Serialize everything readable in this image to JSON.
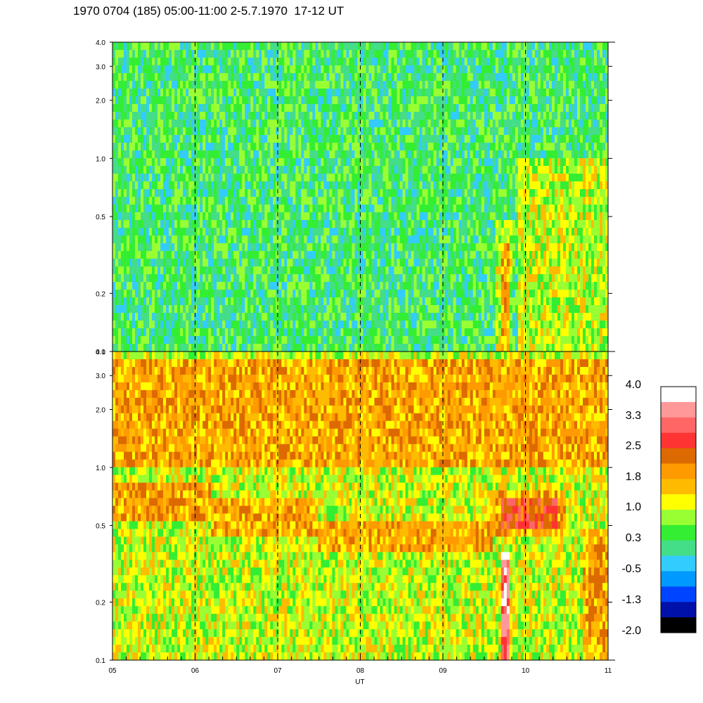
{
  "title": "1970 0704 (185) 05:00-11:00 2-5.7.1970  17-12 UT",
  "chart_data": {
    "type": "heatmap",
    "panels": [
      {
        "name": "",
        "y_scale": "log",
        "ylim": [
          0.1,
          4.0
        ],
        "yticks": [
          {
            "value": 0.1,
            "label": "0.1"
          },
          {
            "value": 0.2,
            "label": "0.2"
          },
          {
            "value": 0.5,
            "label": "0.5"
          },
          {
            "value": 1.0,
            "label": "1.0"
          },
          {
            "value": 2.0,
            "label": "2.0"
          },
          {
            "value": 3.0,
            "label": "3.0"
          },
          {
            "value": 4.0,
            "label": "4.0"
          }
        ],
        "background_level": 0.3,
        "bands": [
          {
            "x_start": 9.65,
            "x_end": 9.85,
            "y_low": 0.1,
            "y_high": 0.5,
            "level": 1.0
          },
          {
            "x_start": 9.9,
            "x_end": 11.0,
            "y_low": 0.1,
            "y_high": 1.0,
            "level": 1.0
          },
          {
            "x_start": 9.72,
            "x_end": 9.8,
            "y_low": 0.1,
            "y_high": 0.35,
            "level": 1.8
          }
        ]
      },
      {
        "name": "",
        "y_scale": "log",
        "ylim": [
          0.1,
          4.0
        ],
        "yticks": [
          {
            "value": 0.1,
            "label": "0.1"
          },
          {
            "value": 0.2,
            "label": "0.2"
          },
          {
            "value": 0.5,
            "label": "0.5"
          },
          {
            "value": 1.0,
            "label": "1.0"
          },
          {
            "value": 2.0,
            "label": "2.0"
          },
          {
            "value": 3.0,
            "label": "3.0"
          },
          {
            "value": 4.0,
            "label": "4.0"
          }
        ],
        "background_level": 1.0,
        "bands": [
          {
            "x_start": 5.0,
            "x_end": 11.0,
            "y_low": 1.0,
            "y_high": 3.5,
            "level": 1.8
          },
          {
            "x_start": 5.0,
            "x_end": 6.2,
            "y_low": 0.55,
            "y_high": 0.85,
            "level": 1.8
          },
          {
            "x_start": 6.2,
            "x_end": 7.5,
            "y_low": 0.45,
            "y_high": 0.7,
            "level": 1.8
          },
          {
            "x_start": 7.5,
            "x_end": 9.6,
            "y_low": 0.35,
            "y_high": 0.55,
            "level": 1.8
          },
          {
            "x_start": 9.6,
            "x_end": 10.5,
            "y_low": 0.45,
            "y_high": 0.75,
            "level": 1.8
          },
          {
            "x_start": 9.7,
            "x_end": 10.4,
            "y_low": 0.5,
            "y_high": 0.7,
            "level": 2.5
          },
          {
            "x_start": 9.72,
            "x_end": 9.82,
            "y_low": 0.1,
            "y_high": 0.35,
            "level": 3.3
          },
          {
            "x_start": 10.7,
            "x_end": 11.0,
            "y_low": 0.1,
            "y_high": 0.5,
            "level": 1.8
          }
        ]
      }
    ],
    "x_scale": "time",
    "xlim": [
      5,
      11
    ],
    "xticks": [
      {
        "value": 5,
        "label": "05"
      },
      {
        "value": 6,
        "label": "06"
      },
      {
        "value": 7,
        "label": "07"
      },
      {
        "value": 8,
        "label": "08"
      },
      {
        "value": 9,
        "label": "09"
      },
      {
        "value": 10,
        "label": "10"
      },
      {
        "value": 11,
        "label": "11"
      }
    ],
    "vertical_dashed_lines": [
      6,
      7,
      8,
      9,
      10
    ],
    "xlabel": "UT",
    "ylabel": "",
    "colorbar": {
      "labels": [
        "4.0",
        "3.3",
        "2.5",
        "1.8",
        "1.0",
        "0.3",
        "-0.5",
        "-1.3",
        "-2.0"
      ],
      "colors": [
        "#ffffff",
        "#ff9999",
        "#ff6666",
        "#ff3333",
        "#dd6a00",
        "#ff9a00",
        "#ffbb00",
        "#ffff00",
        "#99ff33",
        "#33ee33",
        "#44dd88",
        "#33ccff",
        "#0099ff",
        "#0044ff",
        "#0011aa",
        "#000000"
      ]
    }
  }
}
